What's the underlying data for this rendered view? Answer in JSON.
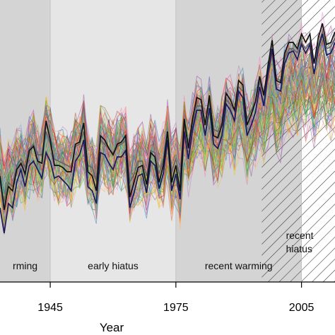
{
  "chart_data": {
    "type": "line",
    "title": "",
    "xlabel": "Year",
    "ylabel": "",
    "xlim": [
      1933,
      2013
    ],
    "ylim": [
      -0.55,
      0.78
    ],
    "x_ticks": [
      {
        "value": 1945,
        "label": "1945"
      },
      {
        "value": 1975,
        "label": "1975"
      },
      {
        "value": 2005,
        "label": "2005"
      }
    ],
    "grid": false,
    "periods": [
      {
        "start": 1933,
        "end": 1945,
        "label": "rming",
        "fill": "#d4d4d4",
        "hatched": false
      },
      {
        "start": 1945,
        "end": 1975,
        "label": "early hiatus",
        "fill": "#e6e6e6",
        "hatched": false
      },
      {
        "start": 1975,
        "end": 2005,
        "label": "recent warming",
        "fill": "#d4d4d4",
        "hatched": false
      },
      {
        "start": 1995.5,
        "end": 2005,
        "label": "",
        "fill": "none",
        "hatched": true
      },
      {
        "start": 2005,
        "end": 2013,
        "label": "recent\nhiatus",
        "fill": "#ffffff",
        "hatched": true
      }
    ],
    "x": [
      1933,
      1934,
      1935,
      1936,
      1937,
      1938,
      1939,
      1940,
      1941,
      1942,
      1943,
      1944,
      1945,
      1946,
      1947,
      1948,
      1949,
      1950,
      1951,
      1952,
      1953,
      1954,
      1955,
      1956,
      1957,
      1958,
      1959,
      1960,
      1961,
      1962,
      1963,
      1964,
      1965,
      1966,
      1967,
      1968,
      1969,
      1970,
      1971,
      1972,
      1973,
      1974,
      1975,
      1976,
      1977,
      1978,
      1979,
      1980,
      1981,
      1982,
      1983,
      1984,
      1985,
      1986,
      1987,
      1988,
      1989,
      1990,
      1991,
      1992,
      1993,
      1994,
      1995,
      1996,
      1997,
      1998,
      1999,
      2000,
      2001,
      2002,
      2003,
      2004,
      2005,
      2006,
      2007,
      2008,
      2009,
      2010,
      2011,
      2012,
      2013
    ],
    "series": [
      {
        "role": "observed-black",
        "color": "#111111",
        "values": [
          -0.05,
          -0.21,
          -0.1,
          -0.12,
          -0.02,
          0.01,
          -0.04,
          0.07,
          0.09,
          0.02,
          0.01,
          0.21,
          0.12,
          0.0,
          0.0,
          -0.01,
          -0.03,
          -0.03,
          0.1,
          0.11,
          0.2,
          -0.03,
          -0.05,
          -0.12,
          0.14,
          0.12,
          0.08,
          0.05,
          0.1,
          0.11,
          0.14,
          -0.15,
          -0.08,
          -0.01,
          0.0,
          -0.09,
          0.06,
          0.04,
          -0.08,
          0.0,
          0.16,
          -0.08,
          0.0,
          -0.12,
          0.22,
          0.08,
          0.22,
          0.32,
          0.31,
          0.19,
          0.33,
          0.14,
          0.13,
          0.19,
          0.34,
          0.31,
          0.26,
          0.4,
          0.38,
          0.19,
          0.24,
          0.3,
          0.42,
          0.33,
          0.47,
          0.59,
          0.4,
          0.39,
          0.53,
          0.58,
          0.58,
          0.55,
          0.62,
          0.58,
          0.62,
          0.48,
          0.6,
          0.67,
          0.57,
          0.58,
          0.63
        ]
      },
      {
        "role": "observed-navy",
        "color": "#1a1a60",
        "values": [
          -0.2,
          -0.32,
          -0.18,
          -0.2,
          -0.08,
          -0.02,
          -0.1,
          0.0,
          0.02,
          -0.02,
          -0.06,
          0.06,
          0.02,
          -0.06,
          -0.05,
          -0.07,
          -0.09,
          -0.12,
          0.02,
          0.05,
          0.12,
          -0.1,
          -0.12,
          -0.18,
          0.06,
          0.05,
          0.01,
          -0.02,
          0.04,
          0.04,
          0.07,
          -0.2,
          -0.13,
          -0.05,
          -0.04,
          -0.13,
          0.02,
          0.0,
          -0.11,
          -0.04,
          0.12,
          -0.12,
          -0.04,
          -0.16,
          0.16,
          0.03,
          0.17,
          0.26,
          0.26,
          0.14,
          0.27,
          0.1,
          0.08,
          0.14,
          0.29,
          0.26,
          0.21,
          0.35,
          0.32,
          0.14,
          0.19,
          0.25,
          0.37,
          0.28,
          0.43,
          0.55,
          0.36,
          0.35,
          0.48,
          0.53,
          0.54,
          0.5,
          0.57,
          0.53,
          0.57,
          0.43,
          0.55,
          0.62,
          0.52,
          0.53,
          0.58
        ]
      },
      {
        "role": "observed-gray",
        "color": "#666666",
        "values": [
          -0.08,
          -0.17,
          -0.08,
          -0.1,
          0.0,
          0.03,
          -0.01,
          0.08,
          0.1,
          0.05,
          0.05,
          0.16,
          0.1,
          0.03,
          0.02,
          0.01,
          0.0,
          -0.01,
          0.09,
          0.1,
          0.16,
          0.0,
          -0.01,
          -0.07,
          0.12,
          0.1,
          0.08,
          0.05,
          0.09,
          0.1,
          0.12,
          -0.08,
          -0.04,
          0.02,
          0.02,
          -0.05,
          0.07,
          0.06,
          -0.04,
          0.03,
          0.15,
          -0.03,
          0.03,
          -0.06,
          0.19,
          0.09,
          0.2,
          0.28,
          0.28,
          0.2,
          0.3,
          0.17,
          0.16,
          0.2,
          0.31,
          0.29,
          0.26,
          0.37,
          0.35,
          0.22,
          0.26,
          0.3,
          0.4,
          0.34,
          0.45,
          0.55,
          0.41,
          0.4,
          0.5,
          0.55,
          0.55,
          0.53,
          0.58,
          0.55,
          0.58,
          0.48,
          0.57,
          0.63,
          0.55,
          0.56,
          0.6
        ]
      }
    ],
    "ensemble": {
      "member_count": 100,
      "palette": [
        "#e41a1c",
        "#377eb8",
        "#4daf4a",
        "#984ea3",
        "#ff7f00",
        "#e6c619",
        "#a65628",
        "#f781bf",
        "#66c2a5",
        "#1f78b4",
        "#33a02c",
        "#fb9a99",
        "#80b1d3",
        "#b3de69",
        "#fdb462",
        "#bc80bd"
      ]
    }
  }
}
